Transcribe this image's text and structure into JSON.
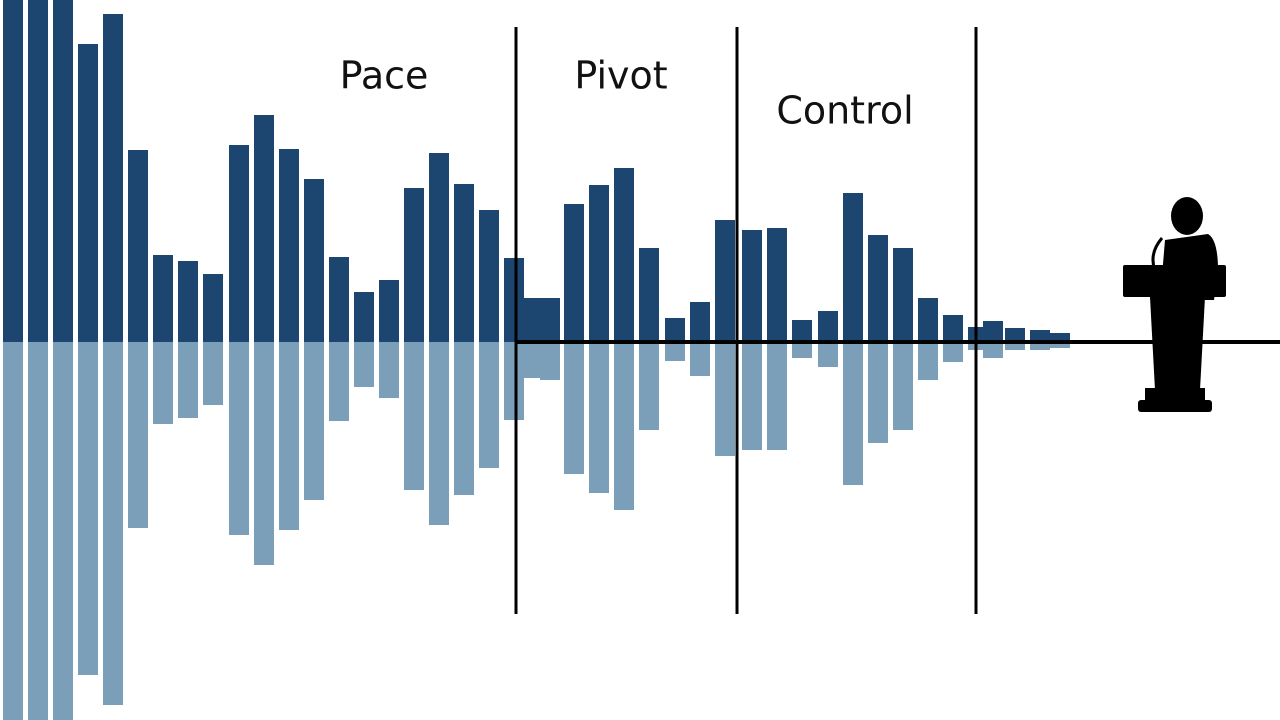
{
  "labels": [
    "Pace",
    "Pivot",
    "Control"
  ]
}
